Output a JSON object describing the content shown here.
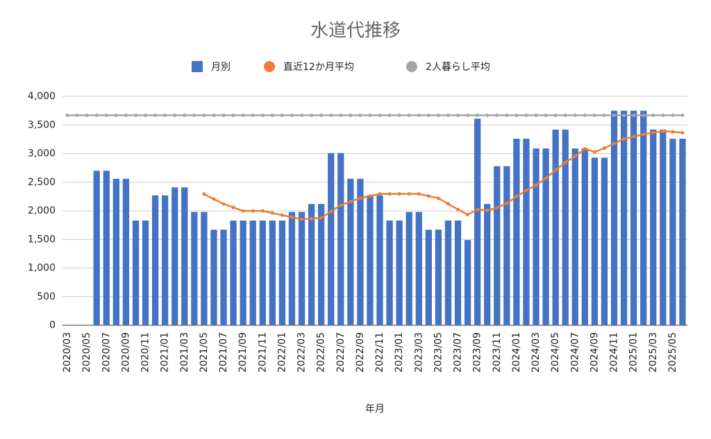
{
  "chart_data": {
    "type": "bar",
    "title": "水道代推移",
    "x_label": "年月",
    "categories": [
      "2020/03",
      null,
      "2020/05",
      null,
      "2020/07",
      null,
      "2020/09",
      null,
      "2020/11",
      null,
      "2021/01",
      null,
      "2021/03",
      null,
      "2021/05",
      null,
      "2021/07",
      null,
      "2021/09",
      null,
      "2021/11",
      null,
      "2022/01",
      null,
      "2022/03",
      null,
      "2022/05",
      null,
      "2022/07",
      null,
      "2022/09",
      null,
      "2022/11",
      null,
      "2023/01",
      null,
      "2023/03",
      null,
      "2023/05",
      null,
      "2023/07",
      null,
      "2023/09",
      null,
      "2023/11",
      null,
      "2024/01",
      null,
      "2024/03",
      null,
      "2024/05",
      null,
      "2024/07",
      null,
      "2024/09",
      null,
      "2024/11",
      null,
      "2025/01",
      null,
      "2025/03",
      null,
      "2025/05",
      null
    ],
    "series": [
      {
        "name": "月別",
        "type": "bar",
        "color": "#4472c4",
        "values": [
          null,
          null,
          null,
          2700,
          2700,
          2560,
          2560,
          1830,
          1830,
          2270,
          2270,
          2410,
          2410,
          1980,
          1980,
          1670,
          1670,
          1830,
          1830,
          1830,
          1830,
          1830,
          1830,
          1980,
          1980,
          2120,
          2120,
          3010,
          3010,
          2560,
          2560,
          2270,
          2270,
          1830,
          1830,
          1980,
          1980,
          1670,
          1670,
          1830,
          1830,
          1490,
          3610,
          2120,
          2780,
          2780,
          3260,
          3260,
          3090,
          3090,
          3420,
          3420,
          3090,
          3090,
          2930,
          2930,
          3750,
          3750,
          3750,
          3750,
          3420,
          3420,
          3260,
          3260
        ]
      },
      {
        "name": "直近12か月平均",
        "type": "line",
        "color": "#ed7d31",
        "values": [
          null,
          null,
          null,
          null,
          null,
          null,
          null,
          null,
          null,
          null,
          null,
          null,
          null,
          null,
          2292,
          2206,
          2120,
          2059,
          1998,
          1998,
          1998,
          1962,
          1925,
          1889,
          1853,
          1865,
          1877,
          1988,
          2100,
          2161,
          2222,
          2258,
          2295,
          2295,
          2295,
          2295,
          2295,
          2258,
          2220,
          2122,
          2023,
          1934,
          2022,
          2009,
          2052,
          2131,
          2250,
          2357,
          2449,
          2568,
          2713,
          2846,
          2951,
          3084,
          3028,
          3095,
          3176,
          3257,
          3298,
          3338,
          3366,
          3393,
          3380,
          3367
        ]
      },
      {
        "name": "2人暮らし平均",
        "type": "line",
        "color": "#a5a5a5",
        "values": [
          3670,
          3670,
          3670,
          3670,
          3670,
          3670,
          3670,
          3670,
          3670,
          3670,
          3670,
          3670,
          3670,
          3670,
          3670,
          3670,
          3670,
          3670,
          3670,
          3670,
          3670,
          3670,
          3670,
          3670,
          3670,
          3670,
          3670,
          3670,
          3670,
          3670,
          3670,
          3670,
          3670,
          3670,
          3670,
          3670,
          3670,
          3670,
          3670,
          3670,
          3670,
          3670,
          3670,
          3670,
          3670,
          3670,
          3670,
          3670,
          3670,
          3670,
          3670,
          3670,
          3670,
          3670,
          3670,
          3670,
          3670,
          3670,
          3670,
          3670,
          3670,
          3670,
          3670,
          3670
        ]
      }
    ],
    "ylim": [
      0,
      4000
    ],
    "yticks": [
      0,
      500,
      {
        "value": 1000,
        "label": "1,000"
      },
      {
        "value": 1500,
        "label": "1,500"
      },
      {
        "value": 2000,
        "label": "2,000"
      },
      {
        "value": 2500,
        "label": "2,500"
      },
      {
        "value": 3000,
        "label": "3,000"
      },
      {
        "value": 3500,
        "label": "3,500"
      },
      {
        "value": 4000,
        "label": "4,000"
      }
    ],
    "grid": true
  }
}
